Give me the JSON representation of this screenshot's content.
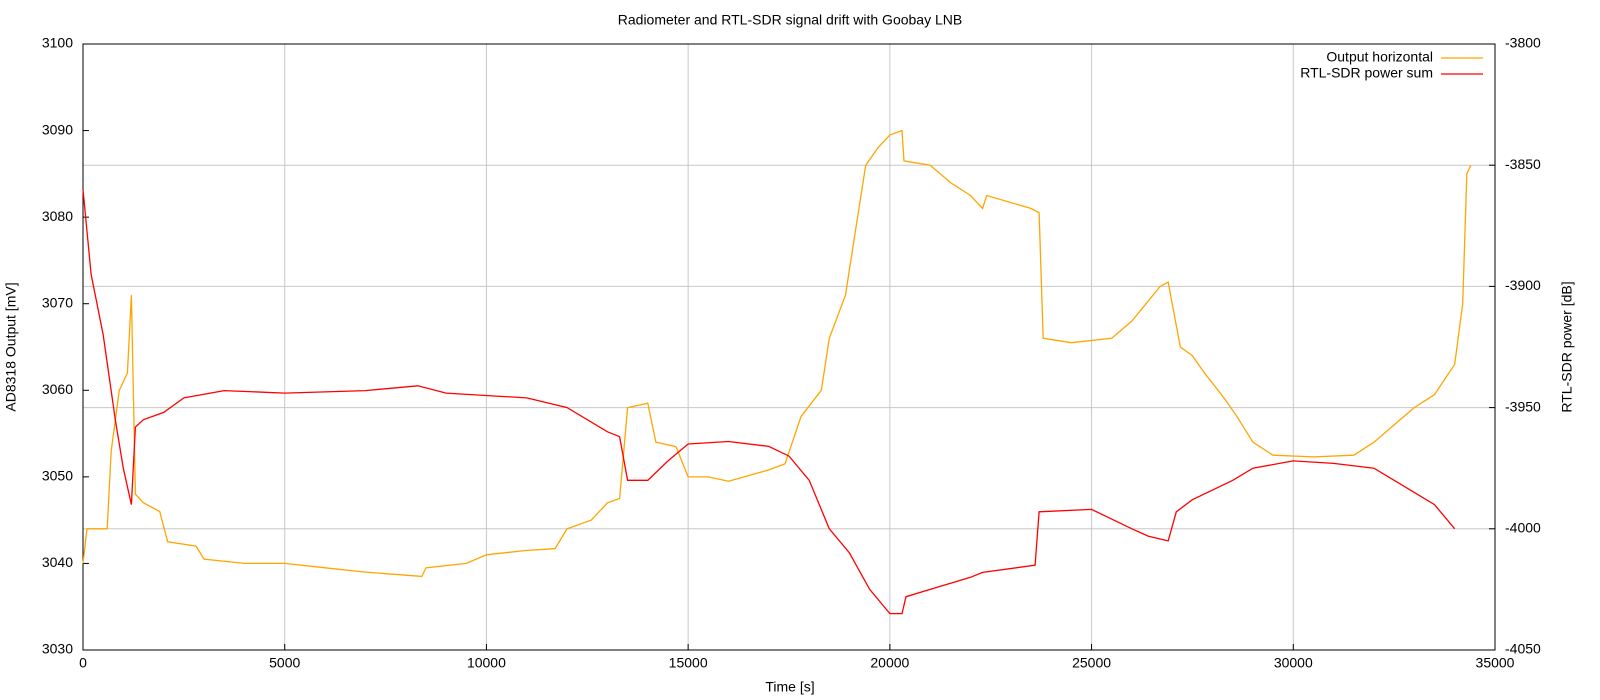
{
  "chart_data": {
    "type": "line",
    "title": "Radiometer and RTL-SDR signal drift with Goobay LNB",
    "xlabel": "Time [s]",
    "ylabel": "AD8318 Output [mV]",
    "y2label": "RTL-SDR power [dB]",
    "xlim": [
      0,
      35000
    ],
    "xticks": [
      0,
      5000,
      10000,
      15000,
      20000,
      25000,
      30000,
      35000
    ],
    "ylim": [
      3030,
      3100
    ],
    "yticks": [
      3030,
      3040,
      3050,
      3060,
      3070,
      3080,
      3090,
      3100
    ],
    "y2lim": [
      -4050,
      -3800
    ],
    "y2ticks": [
      -4050,
      -4000,
      -3950,
      -3900,
      -3850,
      -3800
    ],
    "grid": [
      "x",
      "y2"
    ],
    "legend": "top-right",
    "series": [
      {
        "name": "Output horizontal",
        "color": "#ffa500",
        "x": [
          0,
          100,
          600,
          700,
          900,
          1100,
          1200,
          1300,
          1500,
          1900,
          2100,
          2800,
          3000,
          4000,
          5000,
          6000,
          7000,
          8400,
          8500,
          9500,
          10000,
          11000,
          11700,
          12000,
          12600,
          13000,
          13300,
          13500,
          14000,
          14200,
          14700,
          15000,
          15500,
          16000,
          17000,
          17400,
          17800,
          18300,
          18500,
          18900,
          19000,
          19400,
          19700,
          20000,
          20300,
          20350,
          21000,
          21500,
          22000,
          22300,
          22400,
          23500,
          23700,
          23800,
          24500,
          25500,
          26000,
          26700,
          26900,
          27200,
          27500,
          27800,
          28300,
          28600,
          29000,
          29500,
          30500,
          31500,
          32000,
          32500,
          33000,
          33500,
          34000,
          34200,
          34300,
          34400
        ],
        "values": [
          3040,
          3044,
          3044,
          3053,
          3060,
          3062,
          3071,
          3048,
          3047,
          3046,
          3042.5,
          3042,
          3040.5,
          3040,
          3040,
          3039.5,
          3039,
          3038.5,
          3039.5,
          3040,
          3041,
          3041.5,
          3041.7,
          3044,
          3045,
          3047,
          3047.5,
          3058,
          3058.5,
          3054,
          3053.5,
          3050,
          3050,
          3049.5,
          3050.8,
          3051.5,
          3057,
          3060,
          3066,
          3071,
          3074,
          3086,
          3088,
          3089.5,
          3090,
          3086.5,
          3086,
          3084,
          3082.5,
          3081,
          3082.5,
          3081,
          3080.5,
          3066,
          3065.5,
          3066,
          3068,
          3072,
          3072.5,
          3065,
          3064,
          3062,
          3059,
          3057,
          3054,
          3052.5,
          3052.3,
          3052.5,
          3054,
          3056,
          3058,
          3059.5,
          3063,
          3070,
          3085,
          3086
        ]
      },
      {
        "name": "RTL-SDR power sum",
        "color": "#ff0000",
        "axis": "y2",
        "x": [
          0,
          200,
          500,
          800,
          1000,
          1200,
          1300,
          1500,
          2000,
          2500,
          3500,
          5000,
          7000,
          8300,
          9000,
          11000,
          12000,
          13000,
          13300,
          13500,
          14000,
          14500,
          15000,
          16000,
          17000,
          17500,
          18000,
          18500,
          19000,
          19500,
          20000,
          20300,
          20400,
          21000,
          22000,
          22300,
          23600,
          23700,
          25000,
          26000,
          26400,
          26900,
          27100,
          27500,
          28500,
          29000,
          30000,
          31000,
          32000,
          32500,
          33000,
          33500,
          34000
        ],
        "values": [
          -3860,
          -3895,
          -3920,
          -3955,
          -3975,
          -3990,
          -3958,
          -3955,
          -3952,
          -3946,
          -3943,
          -3944,
          -3943,
          -3941,
          -3944,
          -3946,
          -3950,
          -3960,
          -3962,
          -3980,
          -3980,
          -3972,
          -3965,
          -3964,
          -3966,
          -3970,
          -3980,
          -4000,
          -4010,
          -4025,
          -4035,
          -4035,
          -4028,
          -4025,
          -4020,
          -4018,
          -4015,
          -3993,
          -3992,
          -4000,
          -4003,
          -4005,
          -3993,
          -3988,
          -3980,
          -3975,
          -3972,
          -3973,
          -3975,
          -3980,
          -3985,
          -3990,
          -4000
        ]
      }
    ]
  }
}
